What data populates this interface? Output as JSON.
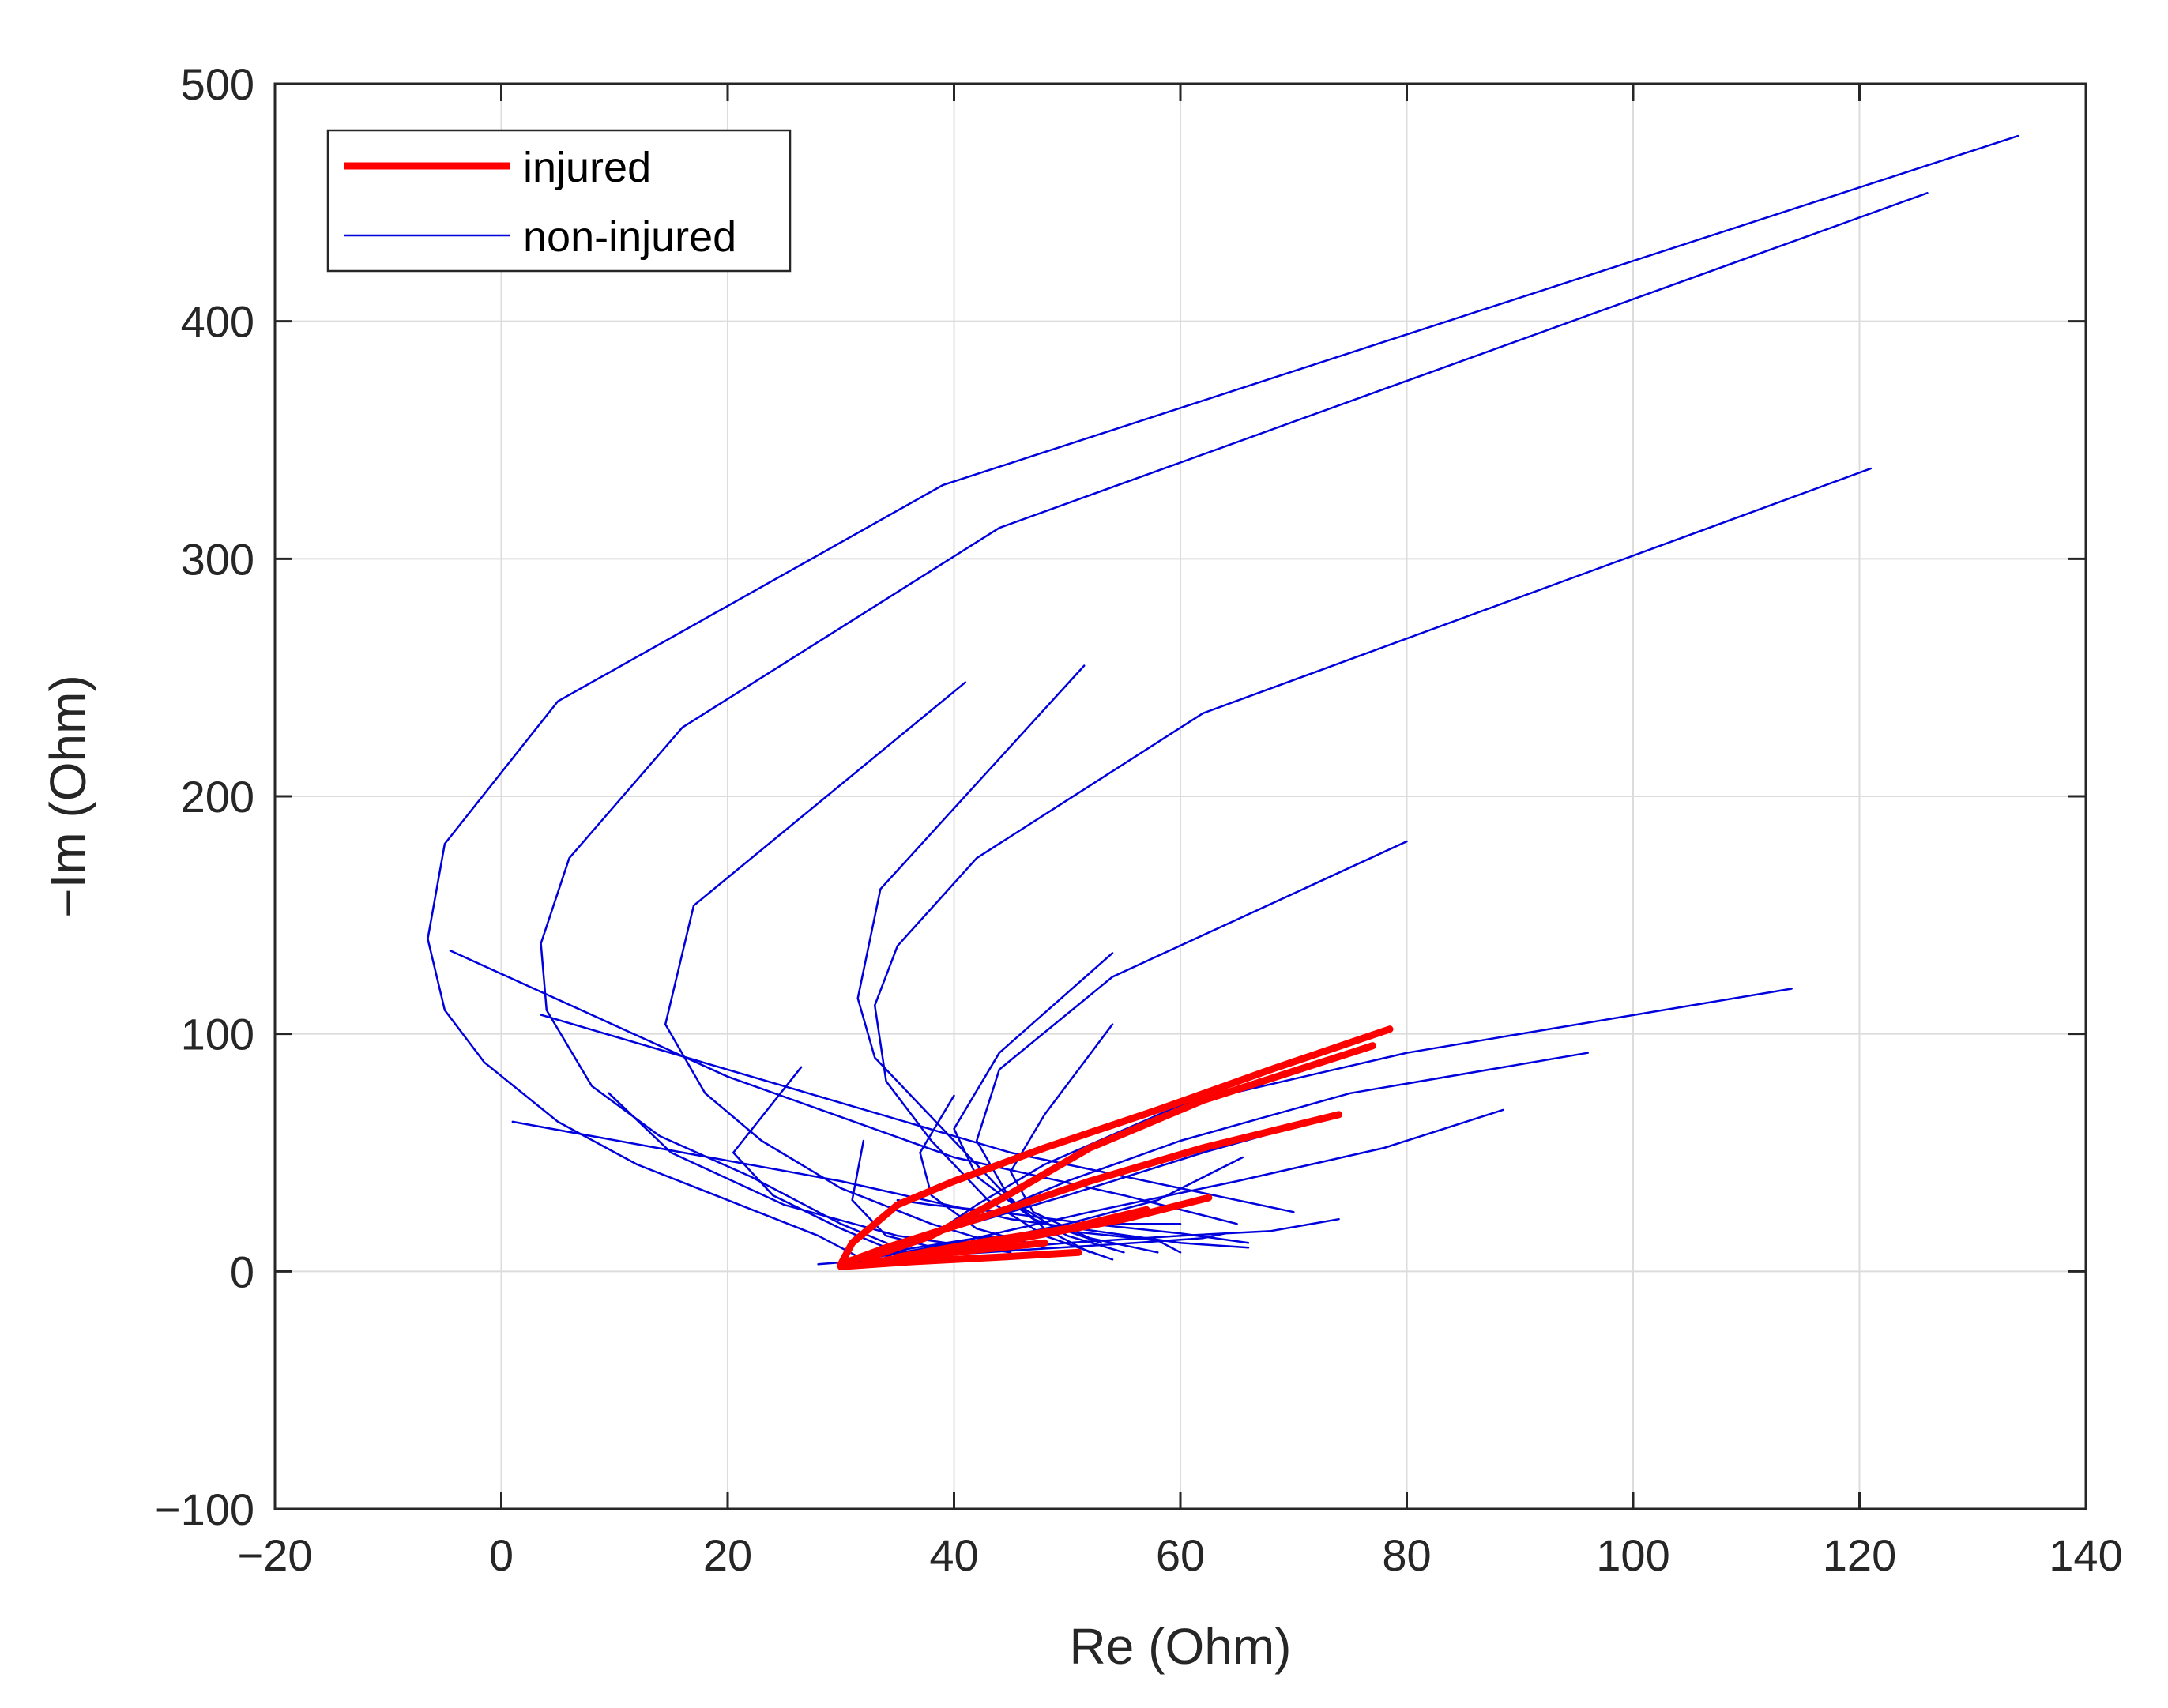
{
  "chart_data": {
    "type": "line",
    "title": "",
    "xlabel": "Re (Ohm)",
    "ylabel": "−Im (Ohm)",
    "xlim": [
      -20,
      140
    ],
    "ylim": [
      -100,
      500
    ],
    "xticks": [
      -20,
      0,
      20,
      40,
      60,
      80,
      100,
      120,
      140
    ],
    "yticks": [
      -100,
      0,
      100,
      200,
      300,
      400,
      500
    ],
    "xtick_labels": [
      "−20",
      "0",
      "20",
      "40",
      "60",
      "80",
      "100",
      "120",
      "140"
    ],
    "ytick_labels": [
      "−100",
      "0",
      "100",
      "200",
      "300",
      "400",
      "500"
    ],
    "grid": true,
    "legend": {
      "placement": "top-left",
      "entries": [
        {
          "label": "injured",
          "color": "#ff0000",
          "width": 9
        },
        {
          "label": "non-injured",
          "color": "#0000dd",
          "width": 2.5
        }
      ]
    },
    "series": [
      {
        "group": "non-injured",
        "color": "#0000dd",
        "points": [
          [
            134,
            478
          ],
          [
            39,
            331
          ],
          [
            5,
            240
          ],
          [
            -5,
            180
          ],
          [
            -6.5,
            140
          ],
          [
            -5,
            110
          ],
          [
            -1.5,
            88
          ],
          [
            5,
            63
          ],
          [
            12,
            45
          ],
          [
            20,
            30
          ],
          [
            28,
            15
          ],
          [
            32,
            5
          ]
        ]
      },
      {
        "group": "non-injured",
        "color": "#0000dd",
        "points": [
          [
            126,
            454
          ],
          [
            44,
            313
          ],
          [
            16,
            229
          ],
          [
            6,
            174
          ],
          [
            3.5,
            138
          ],
          [
            4,
            110
          ],
          [
            8,
            78
          ],
          [
            14,
            57
          ],
          [
            22,
            40
          ],
          [
            30,
            20
          ],
          [
            36,
            8
          ]
        ]
      },
      {
        "group": "non-injured",
        "color": "#0000dd",
        "points": [
          [
            121,
            338
          ],
          [
            62,
            235
          ],
          [
            42,
            174
          ],
          [
            35,
            137
          ],
          [
            33,
            112
          ],
          [
            34,
            80
          ],
          [
            38,
            55
          ],
          [
            43,
            30
          ],
          [
            48,
            15
          ],
          [
            54,
            5
          ]
        ]
      },
      {
        "group": "non-injured",
        "color": "#0000dd",
        "points": [
          [
            41,
            248
          ],
          [
            17,
            154
          ],
          [
            14.5,
            104
          ],
          [
            18,
            75
          ],
          [
            23,
            55
          ],
          [
            30,
            35
          ],
          [
            38,
            20
          ],
          [
            45,
            10
          ]
        ]
      },
      {
        "group": "non-injured",
        "color": "#0000dd",
        "points": [
          [
            51.5,
            255
          ],
          [
            33.5,
            161
          ],
          [
            31.5,
            115
          ],
          [
            33,
            90
          ],
          [
            37,
            70
          ],
          [
            40,
            55
          ],
          [
            44,
            35
          ],
          [
            48,
            18
          ],
          [
            52,
            8
          ]
        ]
      },
      {
        "group": "non-injured",
        "color": "#0000dd",
        "points": [
          [
            -4.5,
            135
          ],
          [
            20,
            82
          ],
          [
            40,
            48
          ],
          [
            55,
            32
          ],
          [
            65,
            20
          ]
        ]
      },
      {
        "group": "non-injured",
        "color": "#0000dd",
        "points": [
          [
            3.5,
            108
          ],
          [
            45,
            50
          ],
          [
            60,
            35
          ],
          [
            70,
            25
          ]
        ]
      },
      {
        "group": "non-injured",
        "color": "#0000dd",
        "points": [
          [
            1,
            63
          ],
          [
            30,
            38
          ],
          [
            45,
            22
          ],
          [
            60,
            12
          ],
          [
            66,
            10
          ]
        ]
      },
      {
        "group": "non-injured",
        "color": "#0000dd",
        "points": [
          [
            9.5,
            75
          ],
          [
            15,
            50
          ],
          [
            25,
            28
          ],
          [
            35,
            15
          ],
          [
            45,
            8
          ]
        ]
      },
      {
        "group": "non-injured",
        "color": "#0000dd",
        "points": [
          [
            80,
            181
          ],
          [
            54,
            124
          ],
          [
            44,
            85
          ],
          [
            42,
            55
          ],
          [
            45,
            30
          ],
          [
            50,
            15
          ],
          [
            55,
            8
          ]
        ]
      },
      {
        "group": "non-injured",
        "color": "#0000dd",
        "points": [
          [
            54,
            134
          ],
          [
            44,
            92
          ],
          [
            40,
            60
          ],
          [
            42,
            40
          ],
          [
            47,
            22
          ],
          [
            53,
            12
          ]
        ]
      },
      {
        "group": "non-injured",
        "color": "#0000dd",
        "points": [
          [
            54,
            104
          ],
          [
            48,
            66
          ],
          [
            45,
            42
          ],
          [
            47,
            25
          ],
          [
            52,
            14
          ],
          [
            58,
            8
          ]
        ]
      },
      {
        "group": "non-injured",
        "color": "#0000dd",
        "points": [
          [
            114,
            119
          ],
          [
            80,
            92
          ],
          [
            60,
            70
          ],
          [
            48,
            45
          ],
          [
            42,
            28
          ],
          [
            38,
            15
          ],
          [
            34,
            6
          ]
        ]
      },
      {
        "group": "non-injured",
        "color": "#0000dd",
        "points": [
          [
            96,
            92
          ],
          [
            75,
            75
          ],
          [
            60,
            55
          ],
          [
            50,
            38
          ],
          [
            42,
            22
          ],
          [
            35,
            10
          ]
        ]
      },
      {
        "group": "non-injured",
        "color": "#0000dd",
        "points": [
          [
            88.5,
            68
          ],
          [
            78,
            52
          ],
          [
            65,
            38
          ],
          [
            52,
            25
          ],
          [
            40,
            12
          ],
          [
            32,
            5
          ]
        ]
      },
      {
        "group": "non-injured",
        "color": "#0000dd",
        "points": [
          [
            74,
            22
          ],
          [
            68,
            17
          ],
          [
            60,
            15
          ],
          [
            50,
            12
          ],
          [
            40,
            8
          ],
          [
            30,
            4
          ]
        ]
      },
      {
        "group": "non-injured",
        "color": "#0000dd",
        "points": [
          [
            26.5,
            86
          ],
          [
            20.5,
            50
          ],
          [
            24,
            32
          ],
          [
            30,
            18
          ],
          [
            35,
            8
          ]
        ]
      },
      {
        "group": "non-injured",
        "color": "#0000dd",
        "points": [
          [
            32,
            55
          ],
          [
            31,
            30
          ],
          [
            34,
            15
          ],
          [
            40,
            8
          ]
        ]
      },
      {
        "group": "non-injured",
        "color": "#0000dd",
        "points": [
          [
            40,
            74
          ],
          [
            37,
            50
          ],
          [
            38,
            32
          ],
          [
            42,
            18
          ],
          [
            48,
            10
          ]
        ]
      },
      {
        "group": "non-injured",
        "color": "#0000dd",
        "points": [
          [
            65.5,
            48
          ],
          [
            58,
            30
          ],
          [
            50,
            20
          ],
          [
            42,
            12
          ],
          [
            34,
            5
          ]
        ]
      },
      {
        "group": "non-injured",
        "color": "#0000dd",
        "points": [
          [
            74,
            66
          ],
          [
            62,
            50
          ],
          [
            50,
            32
          ],
          [
            40,
            18
          ],
          [
            32,
            6
          ]
        ]
      },
      {
        "group": "non-injured",
        "color": "#0000dd",
        "points": [
          [
            66,
            12
          ],
          [
            60,
            16
          ],
          [
            52,
            20
          ],
          [
            44,
            25
          ],
          [
            38,
            28
          ],
          [
            35,
            30
          ]
        ]
      },
      {
        "group": "non-injured",
        "color": "#0000dd",
        "points": [
          [
            28,
            3
          ],
          [
            36,
            6
          ],
          [
            46,
            9
          ],
          [
            56,
            12
          ],
          [
            62,
            14
          ],
          [
            64,
            16
          ]
        ]
      },
      {
        "group": "non-injured",
        "color": "#0000dd",
        "points": [
          [
            30,
            4
          ],
          [
            38,
            10
          ],
          [
            46,
            16
          ],
          [
            54,
            20
          ],
          [
            60,
            20
          ]
        ]
      },
      {
        "group": "non-injured",
        "color": "#0000dd",
        "points": [
          [
            34,
            8
          ],
          [
            42,
            14
          ],
          [
            50,
            17
          ],
          [
            58,
            13
          ],
          [
            60,
            8
          ]
        ]
      },
      {
        "group": "injured",
        "color": "#ff0000",
        "points": [
          [
            78.5,
            102
          ],
          [
            68,
            85
          ],
          [
            58,
            68
          ],
          [
            48,
            52
          ],
          [
            40,
            38
          ],
          [
            35,
            28
          ],
          [
            31,
            12
          ],
          [
            30,
            3
          ]
        ]
      },
      {
        "group": "injured",
        "color": "#ff0000",
        "points": [
          [
            77,
            95
          ],
          [
            62,
            72
          ],
          [
            52,
            52
          ],
          [
            44,
            30
          ],
          [
            38,
            15
          ],
          [
            32,
            5
          ]
        ]
      },
      {
        "group": "injured",
        "color": "#ff0000",
        "points": [
          [
            74,
            66
          ],
          [
            62,
            52
          ],
          [
            52,
            38
          ],
          [
            42,
            22
          ],
          [
            34,
            10
          ],
          [
            30,
            3
          ]
        ]
      },
      {
        "group": "injured",
        "color": "#ff0000",
        "points": [
          [
            62.5,
            31
          ],
          [
            55,
            22
          ],
          [
            46,
            14
          ],
          [
            38,
            8
          ],
          [
            32,
            3
          ]
        ]
      },
      {
        "group": "injured",
        "color": "#ff0000",
        "points": [
          [
            57,
            26
          ],
          [
            50,
            18
          ],
          [
            42,
            12
          ],
          [
            35,
            6
          ]
        ]
      },
      {
        "group": "injured",
        "color": "#ff0000",
        "points": [
          [
            51,
            8
          ],
          [
            44,
            6
          ],
          [
            36,
            4
          ],
          [
            30,
            2
          ]
        ]
      },
      {
        "group": "injured",
        "color": "#ff0000",
        "points": [
          [
            48,
            12
          ],
          [
            40,
            8
          ],
          [
            33,
            4
          ]
        ]
      }
    ]
  }
}
